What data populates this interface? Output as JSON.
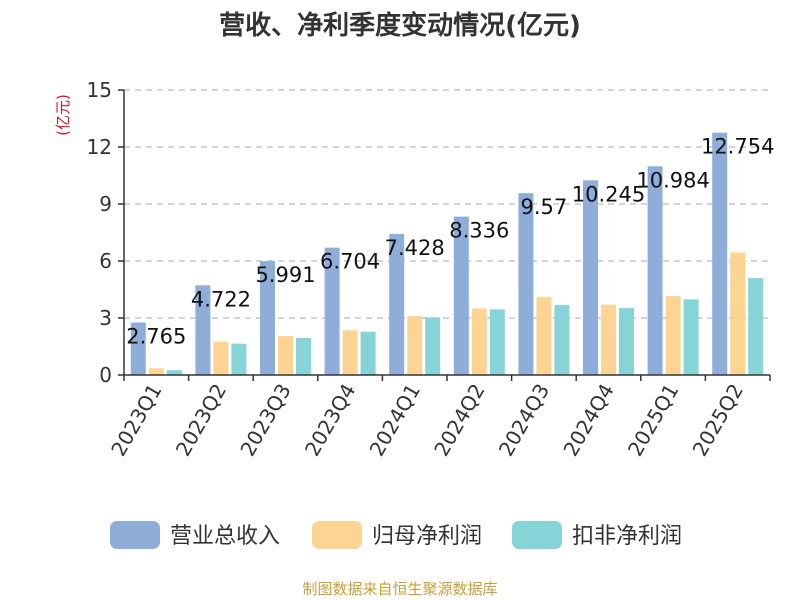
{
  "chart_data": {
    "type": "bar",
    "title": "营收、净利季度变动情况(亿元)",
    "ylabel": "(亿元)",
    "xlabel": "",
    "ylim": [
      0,
      15
    ],
    "yticks": [
      0,
      3,
      6,
      9,
      12,
      15
    ],
    "grid": true,
    "legend_position": "bottom",
    "categories": [
      "2023Q1",
      "2023Q2",
      "2023Q3",
      "2023Q4",
      "2024Q1",
      "2024Q2",
      "2024Q3",
      "2024Q4",
      "2025Q1",
      "2025Q2"
    ],
    "series": [
      {
        "name": "营业总收入",
        "color": "#8fadd9",
        "values": [
          2.765,
          4.722,
          5.991,
          6.704,
          7.428,
          8.336,
          9.57,
          10.245,
          10.984,
          12.754
        ],
        "labels": [
          "2.765",
          "4.722",
          "5.991",
          "6.704",
          "7.428",
          "8.336",
          "9.57",
          "10.245",
          "10.984",
          "12.754"
        ]
      },
      {
        "name": "归母净利润",
        "color": "#fdd494",
        "values": [
          0.35,
          1.75,
          2.05,
          2.35,
          3.1,
          3.5,
          4.1,
          3.7,
          4.15,
          6.45
        ]
      },
      {
        "name": "扣非净利润",
        "color": "#86d3d8",
        "values": [
          0.25,
          1.65,
          1.95,
          2.28,
          3.03,
          3.45,
          3.68,
          3.52,
          3.98,
          5.1
        ]
      }
    ]
  },
  "source": "制图数据来自恒生聚源数据库"
}
